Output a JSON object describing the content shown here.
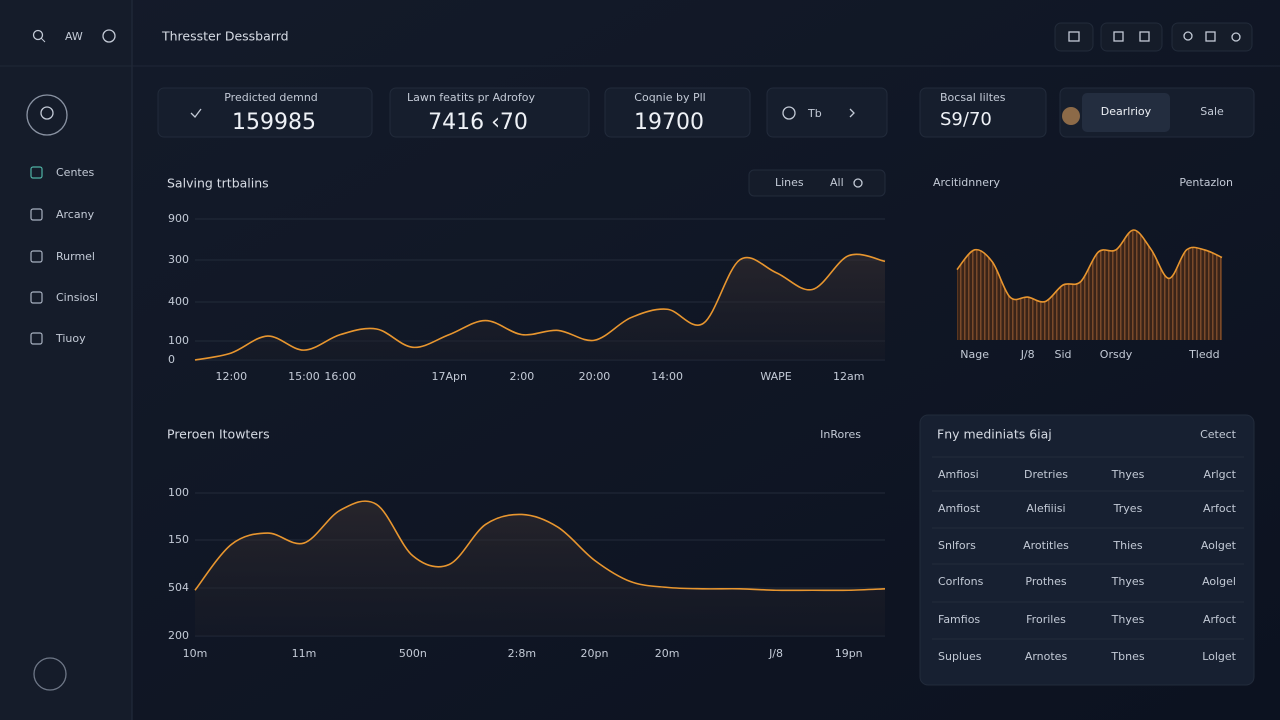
{
  "topbar": {
    "brand": "AW",
    "title": "Thresster Dessbarrd"
  },
  "sidebar": {
    "nav": [
      "Centes",
      "Arcany",
      "Rurmel",
      "Cinsiosl",
      "Tiuoy"
    ]
  },
  "kpis": [
    {
      "label": "Predicted demnd",
      "value": "159985"
    },
    {
      "label": "Lawn featits pr Adrofoy",
      "value": "7416 ‹70"
    },
    {
      "label": "Coqnie by Pll",
      "value": "19700"
    },
    {
      "label": "Bocsal Iiltes",
      "value": "S9/70"
    }
  ],
  "widget": {
    "text": "Tb"
  },
  "toggle": [
    "Dearlrioy",
    "Sale"
  ],
  "table": {
    "title": "Fny mediniats 6iaj",
    "action": "Cetect",
    "rows": [
      [
        "Amfiosi",
        "Dretries",
        "Thyes",
        "Arlgct"
      ],
      [
        "Amfiost",
        "Alefiiisi",
        "Tryes",
        "Arfoct"
      ],
      [
        "Snlfors",
        "Arotitles",
        "Thies",
        "Aolget"
      ],
      [
        "Corlfons",
        "Prothes",
        "Thyes",
        "Aolgel"
      ],
      [
        "Famfios",
        "Froriles",
        "Thyes",
        "Arfoct"
      ],
      [
        "Suplues",
        "Arnotes",
        "Tbnes",
        "Lolget"
      ]
    ]
  },
  "chart_data": [
    {
      "type": "area",
      "title": "Salving trtbalins",
      "toolbar": [
        "Lines",
        "All"
      ],
      "categories": [
        null,
        "12:00",
        null,
        "15:00",
        "16:00",
        null,
        null,
        "17Apn",
        null,
        "2:00",
        null,
        "20:00",
        null,
        "14:00",
        null,
        null,
        "WAPE",
        null,
        "12am",
        null
      ],
      "values": [
        0,
        5,
        17,
        7,
        18,
        22,
        9,
        18,
        28,
        18,
        21,
        14,
        30,
        36,
        26,
        71,
        62,
        50,
        74,
        70
      ],
      "y_labels": [
        "900",
        "300",
        "400",
        "100",
        "0"
      ],
      "ylim": [
        0,
        100
      ],
      "color": "#e8962f",
      "grid": true
    },
    {
      "type": "area",
      "title": "Preroen Itowters",
      "subtitle": "InRores",
      "categories": [
        "10m",
        null,
        null,
        "11m",
        null,
        null,
        "500n",
        null,
        null,
        "2:8m",
        null,
        "20pn",
        null,
        "20m",
        null,
        null,
        "J/8",
        null,
        "19pn",
        null
      ],
      "values": [
        32,
        64,
        72,
        65,
        88,
        92,
        56,
        50,
        78,
        85,
        76,
        53,
        38,
        34,
        33,
        33,
        32,
        32,
        32,
        33
      ],
      "y_labels": [
        "100",
        "150",
        "504",
        "200"
      ],
      "ylim": [
        0,
        100
      ],
      "color": "#e8962f",
      "grid": true
    },
    {
      "type": "area",
      "title": "Arcitidnnery",
      "subtitle": "Pentazlon",
      "categories": [
        null,
        "Nage",
        null,
        null,
        "J/8",
        null,
        "Sid",
        null,
        null,
        "Orsdy",
        null,
        null,
        null,
        null,
        "Tledd",
        null
      ],
      "values": [
        64,
        82,
        71,
        39,
        39,
        35,
        50,
        53,
        80,
        82,
        100,
        82,
        56,
        82,
        82,
        75
      ],
      "ylim": [
        0,
        100
      ],
      "color": "#e8962f",
      "stripes": true
    }
  ]
}
